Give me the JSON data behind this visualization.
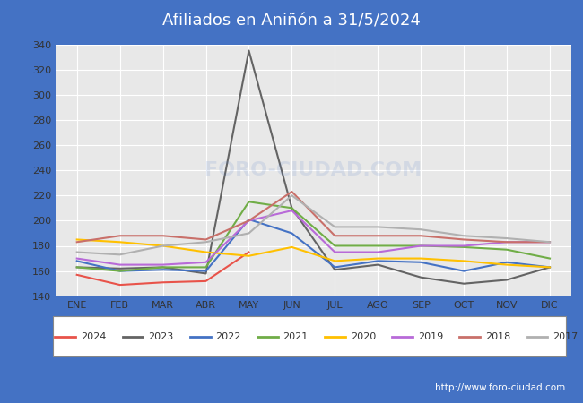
{
  "title": "Afiliados en Aniñón a 31/5/2024",
  "months": [
    "ENE",
    "FEB",
    "MAR",
    "ABR",
    "MAY",
    "JUN",
    "JUL",
    "AGO",
    "SEP",
    "OCT",
    "NOV",
    "DIC"
  ],
  "ylim": [
    140,
    340
  ],
  "yticks": [
    140,
    160,
    180,
    200,
    220,
    240,
    260,
    280,
    300,
    320,
    340
  ],
  "series": {
    "2024": {
      "color": "#e8534a",
      "data": [
        157,
        149,
        151,
        152,
        175,
        null,
        null,
        null,
        null,
        null,
        null,
        null
      ]
    },
    "2023": {
      "color": "#646464",
      "data": [
        163,
        162,
        163,
        158,
        335,
        210,
        161,
        165,
        155,
        150,
        153,
        163
      ]
    },
    "2022": {
      "color": "#4472c4",
      "data": [
        168,
        160,
        161,
        160,
        201,
        190,
        163,
        168,
        167,
        160,
        167,
        163
      ]
    },
    "2021": {
      "color": "#70ad47",
      "data": [
        163,
        160,
        163,
        163,
        215,
        210,
        180,
        180,
        180,
        179,
        177,
        170
      ]
    },
    "2020": {
      "color": "#ffc000",
      "data": [
        185,
        183,
        180,
        175,
        172,
        179,
        168,
        170,
        170,
        168,
        165,
        163
      ]
    },
    "2019": {
      "color": "#b86ad8",
      "data": [
        170,
        165,
        165,
        167,
        200,
        208,
        175,
        175,
        180,
        180,
        183,
        183
      ]
    },
    "2018": {
      "color": "#c9706a",
      "data": [
        183,
        188,
        188,
        185,
        200,
        223,
        188,
        188,
        188,
        185,
        183,
        183
      ]
    },
    "2017": {
      "color": "#b0b0b0",
      "data": [
        175,
        173,
        180,
        183,
        190,
        220,
        195,
        195,
        193,
        188,
        186,
        183
      ]
    }
  },
  "legend_order": [
    "2024",
    "2023",
    "2022",
    "2021",
    "2020",
    "2019",
    "2018",
    "2017"
  ],
  "watermark": "FORO-CIUDAD.COM",
  "url": "http://www.foro-ciudad.com",
  "plot_bg": "#e8e8e8",
  "grid_color": "#ffffff",
  "accent_color": "#4472c4",
  "title_bg": "#4472c4",
  "title_text_color": "#ffffff",
  "footer_bg": "#4472c4",
  "footer_text_color": "#ffffff"
}
